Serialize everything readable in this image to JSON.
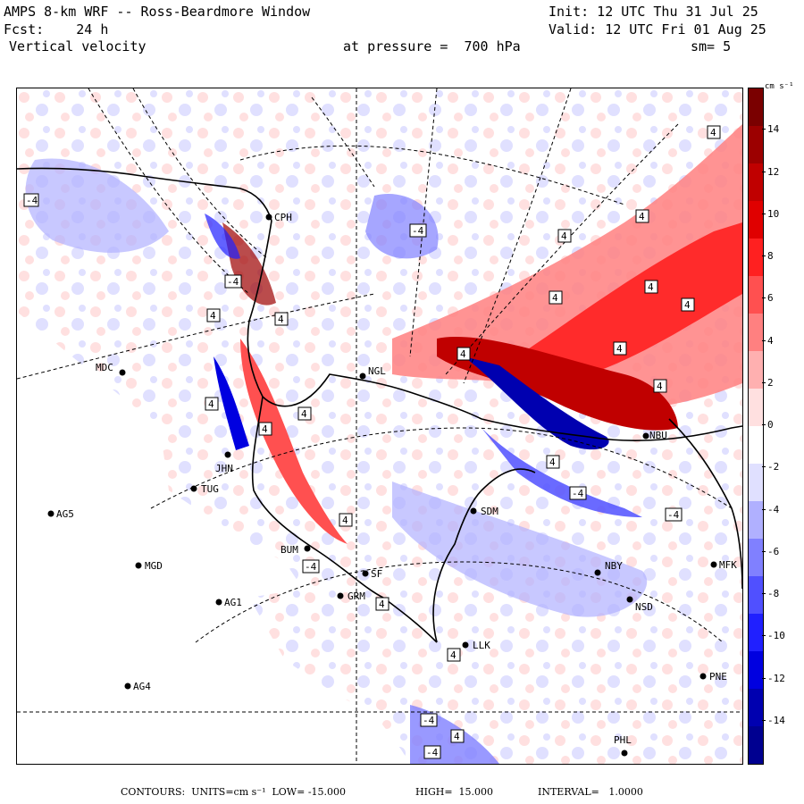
{
  "header": {
    "model": "AMPS 8-km WRF -- Ross-Beardmore Window",
    "init": "Init: 12 UTC Thu 31 Jul 25",
    "fcst": "Fcst:    24 h",
    "valid": "Valid: 12 UTC Fri 01 Aug 25",
    "field": "Vertical velocity",
    "level": "at pressure =  700 hPa",
    "smooth": "sm= 5"
  },
  "colorbar": {
    "units": "cm s⁻¹",
    "tick_labels": [
      "14",
      "12",
      "10",
      "8",
      "6",
      "4",
      "2",
      "0",
      "-2",
      "-4",
      "-6",
      "-8",
      "-10",
      "-12",
      "-14"
    ],
    "range": [
      -16,
      16
    ],
    "colors": [
      "#7a0000",
      "#9c0000",
      "#c00000",
      "#e00000",
      "#ff2020",
      "#ff5050",
      "#ff8080",
      "#ffb0b0",
      "#ffe0e0",
      "#ffffff",
      "#e0e0ff",
      "#b0b0ff",
      "#8080ff",
      "#5050ff",
      "#2020ff",
      "#0000e0",
      "#0000b0",
      "#000090"
    ]
  },
  "stations": [
    {
      "name": "CPH"
    },
    {
      "name": "MDC"
    },
    {
      "name": "NGL"
    },
    {
      "name": "JHN"
    },
    {
      "name": "TUG"
    },
    {
      "name": "AG5"
    },
    {
      "name": "SDM"
    },
    {
      "name": "BUM"
    },
    {
      "name": "MGD"
    },
    {
      "name": "GRM"
    },
    {
      "name": "SF"
    },
    {
      "name": "AG1"
    },
    {
      "name": "NBY"
    },
    {
      "name": "NSD"
    },
    {
      "name": "LLK"
    },
    {
      "name": "AG4"
    },
    {
      "name": "PNE"
    },
    {
      "name": "PHL"
    },
    {
      "name": "NBU"
    },
    {
      "name": "MFK"
    }
  ],
  "contour_labels": [
    "-4",
    "4",
    "4",
    "4",
    "4",
    "-4",
    "4",
    "4",
    "4",
    "-4",
    "4",
    "4",
    "4",
    "4",
    "4",
    "4",
    "4",
    "-4",
    "4",
    "4",
    "4",
    "-4",
    "-4",
    "4",
    "-4",
    "4",
    "-4"
  ],
  "footer": {
    "contours": "CONTOURS:  UNITS=cm s⁻¹  LOW= -15.000",
    "high": "HIGH=  15.000",
    "interval": "INTERVAL=   1.0000"
  }
}
